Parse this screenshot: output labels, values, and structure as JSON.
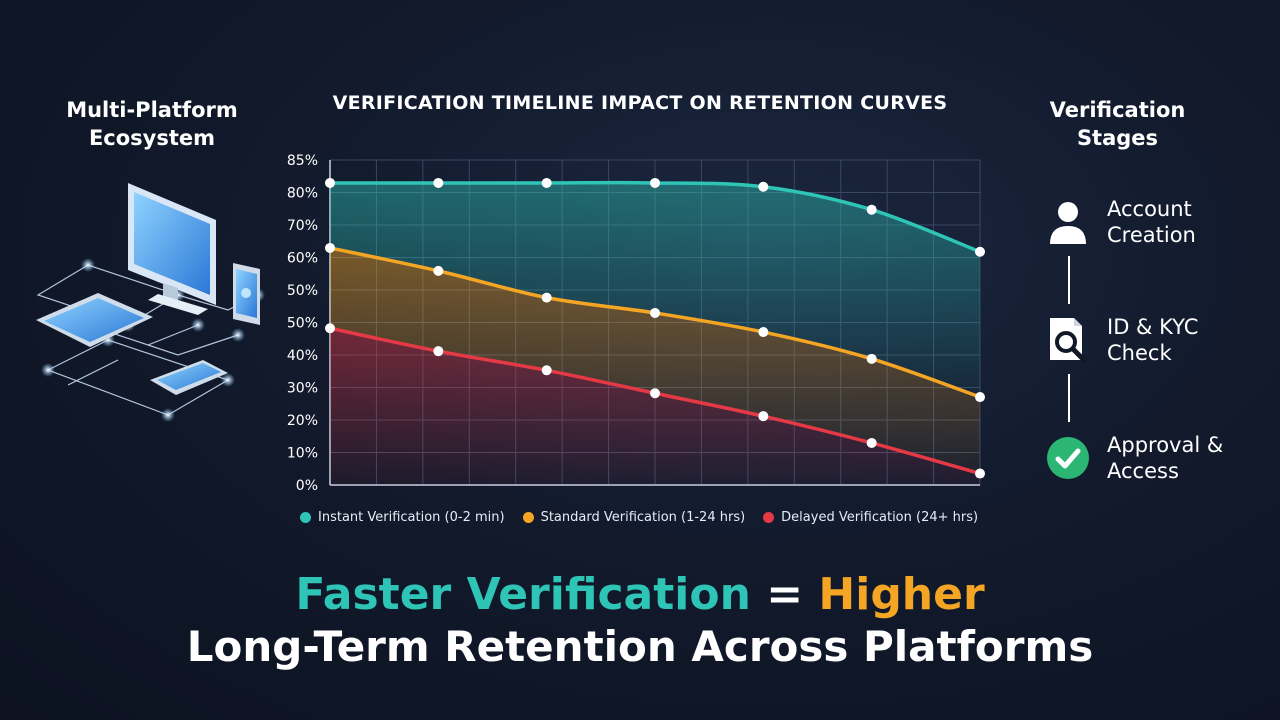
{
  "left_panel": {
    "title_line1": "Multi-Platform",
    "title_line2": "Ecosystem"
  },
  "chart_data": {
    "type": "area",
    "title": "VERIFICATION TIMELINE IMPACT ON RETENTION CURVES",
    "xlabel": "",
    "ylabel": "",
    "y_tick_labels": [
      "85%",
      "80%",
      "70%",
      "60%",
      "50%",
      "50%",
      "40%",
      "30%",
      "20%",
      "10%",
      "0%"
    ],
    "ylim": [
      0,
      85
    ],
    "grid": true,
    "legend_position": "bottom",
    "x": [
      1,
      2,
      3,
      4,
      5,
      6,
      7
    ],
    "series": [
      {
        "name": "Instant Verification (0-2 min)",
        "color": "#2ec4b6",
        "values": [
          79,
          79,
          79,
          79,
          78,
          72,
          61
        ]
      },
      {
        "name": "Standard Verification (1-24 hrs)",
        "color": "#f5a524",
        "values": [
          62,
          56,
          49,
          45,
          40,
          33,
          23
        ]
      },
      {
        "name": "Delayed Verification (24+ hrs)",
        "color": "#e63946",
        "values": [
          41,
          35,
          30,
          24,
          18,
          11,
          3
        ]
      }
    ]
  },
  "stages": {
    "title_line1": "Verification",
    "title_line2": "Stages",
    "items": [
      {
        "line1": "Account",
        "line2": "Creation",
        "icon": "user-icon"
      },
      {
        "line1": "ID & KYC",
        "line2": "Check",
        "icon": "document-search-icon"
      },
      {
        "line1": "Approval &",
        "line2": "Access",
        "icon": "check-circle-icon"
      }
    ]
  },
  "headline": {
    "part1": "Faster Verification",
    "part2": " = ",
    "part3": "Higher",
    "line2": "Long-Term Retention Across Platforms"
  },
  "colors": {
    "teal": "#2ec4b6",
    "orange": "#f5a524",
    "red": "#e63946",
    "approve_green": "#2bb673"
  }
}
